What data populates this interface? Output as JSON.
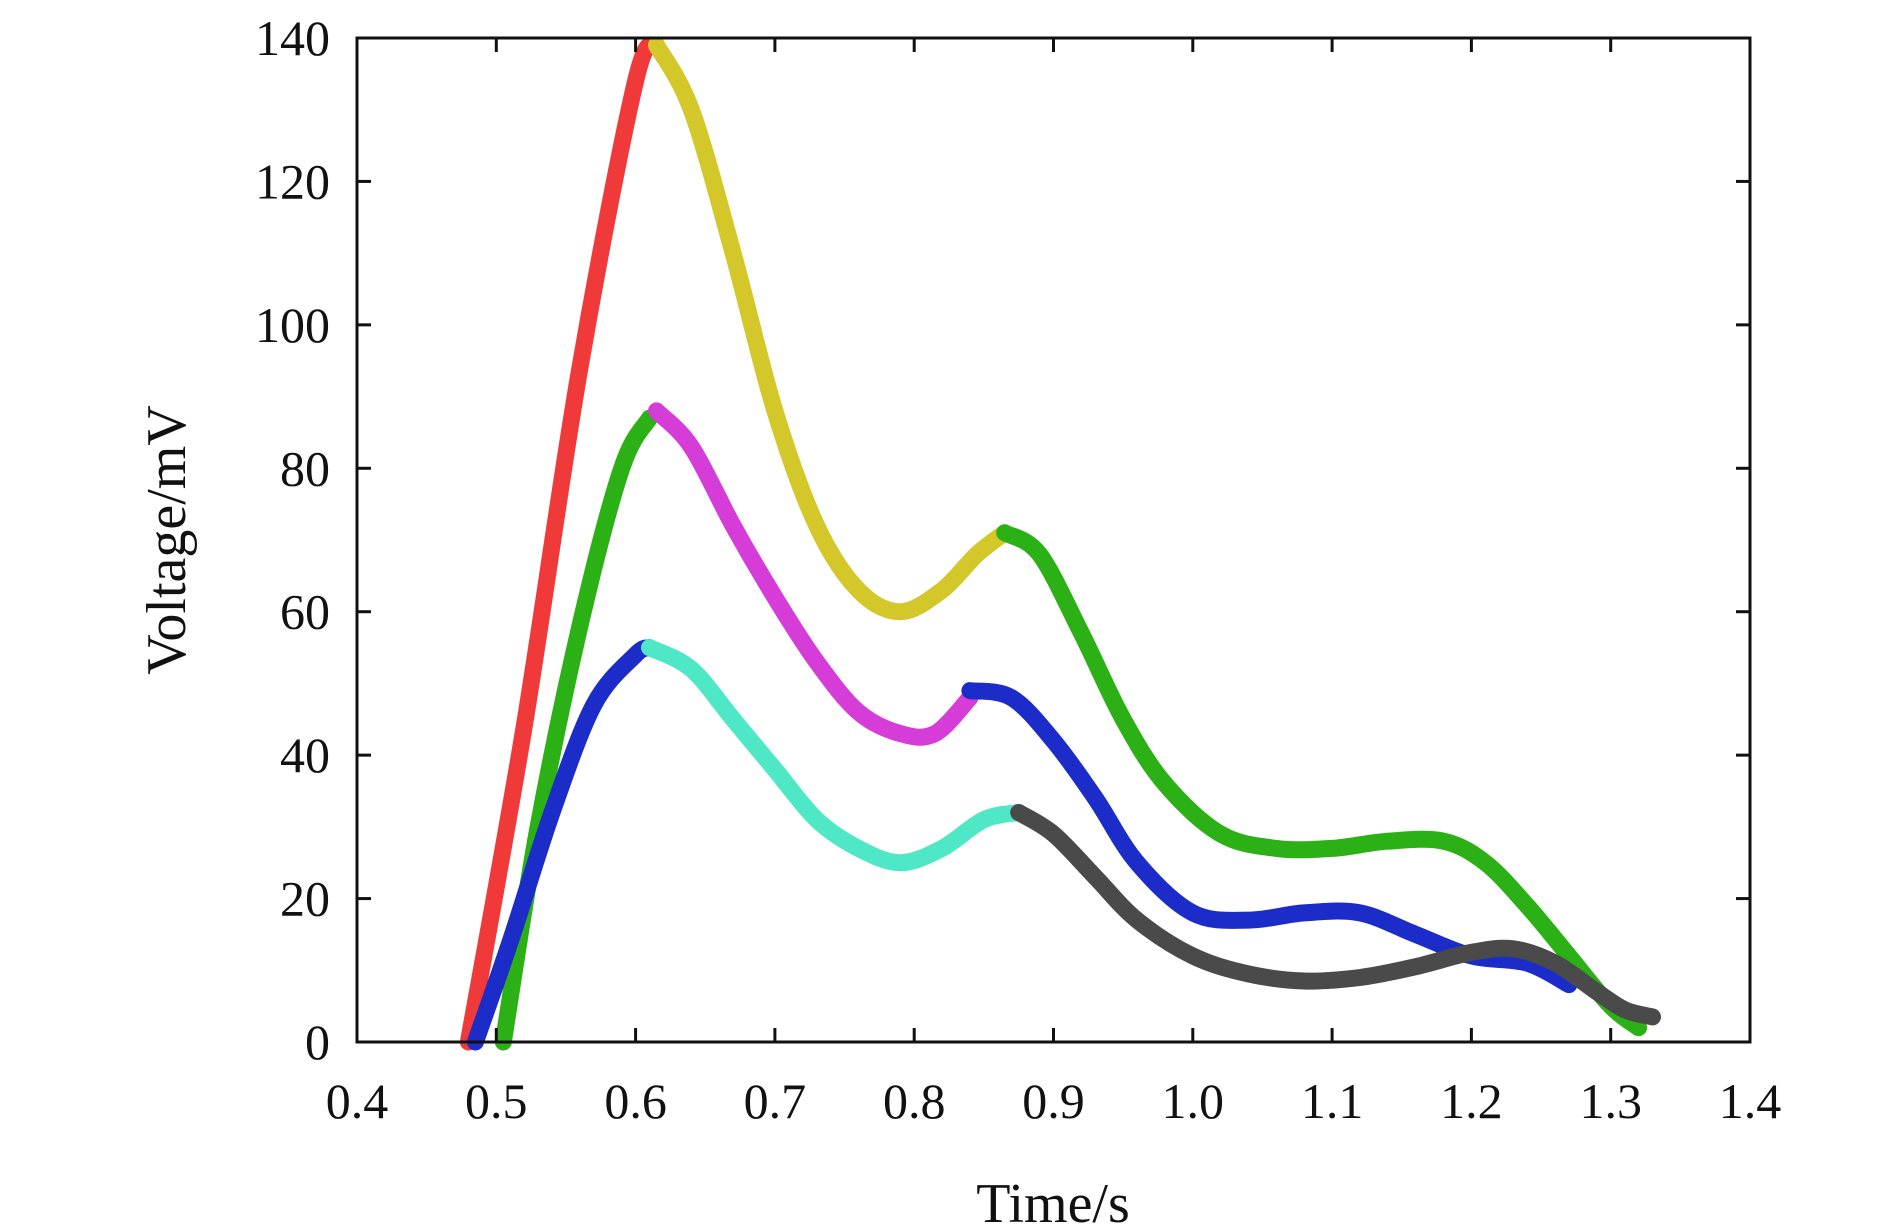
{
  "chart_data": {
    "type": "line",
    "title": "",
    "xlabel": "Time/s",
    "ylabel": "Voltage/mV",
    "xlim": [
      0.4,
      1.4
    ],
    "ylim": [
      0,
      140
    ],
    "xticks": [
      "0.4",
      "0.5",
      "0.6",
      "0.7",
      "0.8",
      "0.9",
      "1.0",
      "1.1",
      "1.2",
      "1.3",
      "1.4"
    ],
    "yticks": [
      "0",
      "20",
      "40",
      "60",
      "80",
      "100",
      "120",
      "140"
    ],
    "grid": false,
    "legend": "none",
    "series": [
      {
        "color": "#f03a3a",
        "x": [
          0.48,
          0.52,
          0.56,
          0.6,
          0.615
        ],
        "y": [
          0,
          44,
          94,
          134,
          139
        ]
      },
      {
        "color": "#d4c72a",
        "x": [
          0.615,
          0.64,
          0.67,
          0.7,
          0.73,
          0.76,
          0.79,
          0.82,
          0.845,
          0.865
        ],
        "y": [
          139,
          130,
          110,
          88,
          72,
          63,
          60,
          63,
          68,
          71
        ]
      },
      {
        "color": "#2bb015",
        "x": [
          0.505,
          0.53,
          0.56,
          0.59,
          0.61
        ],
        "y": [
          0,
          30,
          58,
          80,
          87
        ]
      },
      {
        "color": "#2bb015",
        "x": [
          0.865,
          0.89,
          0.92,
          0.95,
          0.98,
          1.02,
          1.06,
          1.1,
          1.14,
          1.18,
          1.21,
          1.24,
          1.27,
          1.3,
          1.32
        ],
        "y": [
          71,
          68,
          57,
          45,
          36,
          29,
          27,
          27,
          28,
          28,
          25,
          19,
          12,
          5,
          2
        ]
      },
      {
        "color": "#d63cd8",
        "x": [
          0.615,
          0.64,
          0.67,
          0.7,
          0.73,
          0.76,
          0.79,
          0.815,
          0.84
        ],
        "y": [
          88,
          83,
          72,
          62,
          53,
          46,
          43,
          43,
          48
        ]
      },
      {
        "color": "#1c2cc8",
        "x": [
          0.485,
          0.51,
          0.54,
          0.57,
          0.6,
          0.61
        ],
        "y": [
          0,
          14,
          32,
          47,
          54,
          55
        ]
      },
      {
        "color": "#1c2cc8",
        "x": [
          0.84,
          0.87,
          0.9,
          0.93,
          0.96,
          1.0,
          1.04,
          1.08,
          1.12,
          1.16,
          1.2,
          1.24,
          1.27
        ],
        "y": [
          49,
          48,
          42,
          34,
          25,
          18,
          17,
          18,
          18,
          15,
          12,
          11,
          8
        ]
      },
      {
        "color": "#4ee8c6",
        "x": [
          0.61,
          0.64,
          0.67,
          0.7,
          0.73,
          0.76,
          0.79,
          0.82,
          0.85,
          0.875
        ],
        "y": [
          55,
          52,
          45,
          38,
          31,
          27,
          25,
          27,
          31,
          32
        ]
      },
      {
        "color": "#4a4a4a",
        "x": [
          0.875,
          0.9,
          0.93,
          0.96,
          1.0,
          1.04,
          1.08,
          1.12,
          1.16,
          1.2,
          1.23,
          1.26,
          1.29,
          1.31,
          1.33
        ],
        "y": [
          32,
          29,
          23,
          17,
          12,
          9.5,
          8.5,
          9,
          10.5,
          12.5,
          13,
          11,
          7,
          4.5,
          3.5
        ]
      }
    ]
  }
}
